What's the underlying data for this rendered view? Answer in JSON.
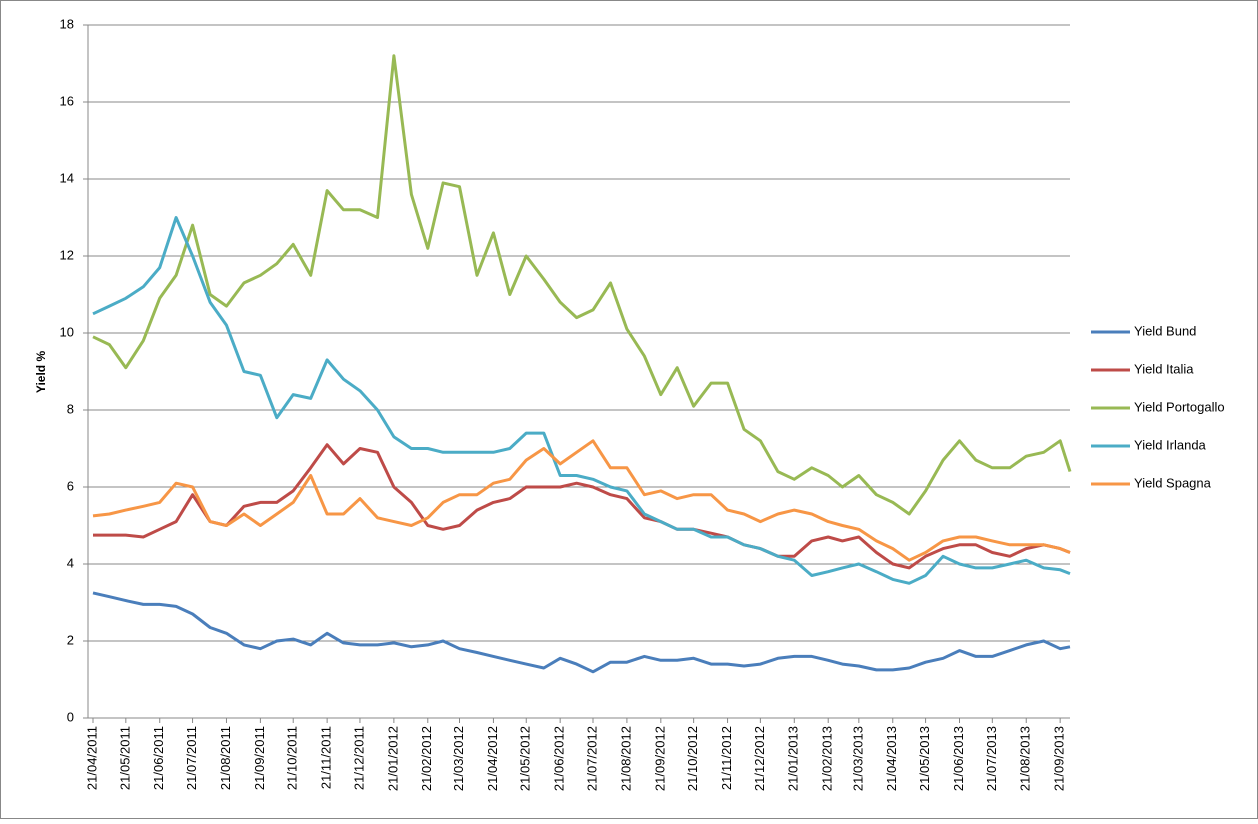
{
  "chart_data": {
    "type": "line",
    "y_label": "Yield %",
    "x": [
      "21/04/2011",
      "06/05/2011",
      "21/05/2011",
      "06/06/2011",
      "21/06/2011",
      "06/07/2011",
      "21/07/2011",
      "06/08/2011",
      "21/08/2011",
      "06/09/2011",
      "21/09/2011",
      "06/10/2011",
      "21/10/2011",
      "06/11/2011",
      "21/11/2011",
      "06/12/2011",
      "21/12/2011",
      "06/01/2012",
      "21/01/2012",
      "06/02/2012",
      "21/02/2012",
      "06/03/2012",
      "21/03/2012",
      "06/04/2012",
      "21/04/2012",
      "06/05/2012",
      "21/05/2012",
      "06/06/2012",
      "21/06/2012",
      "06/07/2012",
      "21/07/2012",
      "06/08/2012",
      "21/08/2012",
      "06/09/2012",
      "21/09/2012",
      "06/10/2012",
      "21/10/2012",
      "06/11/2012",
      "21/11/2012",
      "06/12/2012",
      "21/12/2012",
      "06/01/2013",
      "21/01/2013",
      "06/02/2013",
      "21/02/2013",
      "06/03/2013",
      "21/03/2013",
      "06/04/2013",
      "21/04/2013",
      "06/05/2013",
      "21/05/2013",
      "06/06/2013",
      "21/06/2013",
      "06/07/2013",
      "21/07/2013",
      "06/08/2013",
      "21/08/2013",
      "06/09/2013",
      "21/09/2013",
      "30/09/2013"
    ],
    "series": [
      {
        "name": "Yield Bund",
        "color": "#4a7ebb",
        "values": [
          3.25,
          3.15,
          3.05,
          2.95,
          2.95,
          2.9,
          2.7,
          2.35,
          2.2,
          1.9,
          1.8,
          2.0,
          2.05,
          1.9,
          2.2,
          1.95,
          1.9,
          1.9,
          1.95,
          1.85,
          1.9,
          2.0,
          1.8,
          1.7,
          1.6,
          1.5,
          1.4,
          1.3,
          1.55,
          1.4,
          1.2,
          1.45,
          1.45,
          1.6,
          1.5,
          1.5,
          1.55,
          1.4,
          1.4,
          1.35,
          1.4,
          1.55,
          1.6,
          1.6,
          1.5,
          1.4,
          1.35,
          1.25,
          1.25,
          1.3,
          1.45,
          1.55,
          1.75,
          1.6,
          1.6,
          1.75,
          1.9,
          2.0,
          1.8,
          1.85
        ]
      },
      {
        "name": "Yield Italia",
        "color": "#be4b48",
        "values": [
          4.75,
          4.75,
          4.75,
          4.7,
          4.9,
          5.1,
          5.8,
          5.1,
          5.0,
          5.5,
          5.6,
          5.6,
          5.9,
          6.5,
          7.1,
          6.6,
          7.0,
          6.9,
          6.0,
          5.6,
          5.0,
          4.9,
          5.0,
          5.4,
          5.6,
          5.7,
          6.0,
          6.0,
          6.0,
          6.1,
          6.0,
          5.8,
          5.7,
          5.2,
          5.1,
          4.9,
          4.9,
          4.8,
          4.7,
          4.5,
          4.4,
          4.2,
          4.2,
          4.6,
          4.7,
          4.6,
          4.7,
          4.3,
          4.0,
          3.9,
          4.2,
          4.4,
          4.5,
          4.5,
          4.3,
          4.2,
          4.4,
          4.5,
          4.4,
          4.3
        ]
      },
      {
        "name": "Yield Portogallo",
        "color": "#98b954",
        "values": [
          9.9,
          9.7,
          9.1,
          9.8,
          10.9,
          11.5,
          12.8,
          11.0,
          10.7,
          11.3,
          11.5,
          11.8,
          12.3,
          11.5,
          13.7,
          13.2,
          13.2,
          13.0,
          17.2,
          13.6,
          12.2,
          13.9,
          13.8,
          11.5,
          12.6,
          11.0,
          12.0,
          11.4,
          10.8,
          10.4,
          10.6,
          11.3,
          10.1,
          9.4,
          8.4,
          9.1,
          8.1,
          8.7,
          8.7,
          7.5,
          7.2,
          6.4,
          6.2,
          6.5,
          6.3,
          6.0,
          6.3,
          5.8,
          5.6,
          5.3,
          5.9,
          6.7,
          7.2,
          6.7,
          6.5,
          6.5,
          6.8,
          6.9,
          7.2,
          6.4
        ]
      },
      {
        "name": "Yield Irlanda",
        "color": "#4bacc6",
        "values": [
          10.5,
          10.7,
          10.9,
          11.2,
          11.7,
          13.0,
          12.0,
          10.8,
          10.2,
          9.0,
          8.9,
          7.8,
          8.4,
          8.3,
          9.3,
          8.8,
          8.5,
          8.0,
          7.3,
          7.0,
          7.0,
          6.9,
          6.9,
          6.9,
          6.9,
          7.0,
          7.4,
          7.4,
          6.3,
          6.3,
          6.2,
          6.0,
          5.9,
          5.3,
          5.1,
          4.9,
          4.9,
          4.7,
          4.7,
          4.5,
          4.4,
          4.2,
          4.1,
          3.7,
          3.8,
          3.9,
          4.0,
          3.8,
          3.6,
          3.5,
          3.7,
          4.2,
          4.0,
          3.9,
          3.9,
          4.0,
          4.1,
          3.9,
          3.85,
          3.75
        ]
      },
      {
        "name": "Yield Spagna",
        "color": "#f79646",
        "values": [
          5.25,
          5.3,
          5.4,
          5.5,
          5.6,
          6.1,
          6.0,
          5.1,
          5.0,
          5.3,
          5.0,
          5.3,
          5.6,
          6.3,
          5.3,
          5.3,
          5.7,
          5.2,
          5.1,
          5.0,
          5.2,
          5.6,
          5.8,
          5.8,
          6.1,
          6.2,
          6.7,
          7.0,
          6.6,
          6.9,
          7.2,
          6.5,
          6.5,
          5.8,
          5.9,
          5.7,
          5.8,
          5.8,
          5.4,
          5.3,
          5.1,
          5.3,
          5.4,
          5.3,
          5.1,
          5.0,
          4.9,
          4.6,
          4.4,
          4.1,
          4.3,
          4.6,
          4.7,
          4.7,
          4.6,
          4.5,
          4.5,
          4.5,
          4.4,
          4.3
        ]
      }
    ],
    "xlim": [
      "21/04/2011",
      "30/09/2013"
    ],
    "xticks": [
      "21/04/2011",
      "21/05/2011",
      "21/06/2011",
      "21/07/2011",
      "21/08/2011",
      "21/09/2011",
      "21/10/2011",
      "21/11/2011",
      "21/12/2011",
      "21/01/2012",
      "21/02/2012",
      "21/03/2012",
      "21/04/2012",
      "21/05/2012",
      "21/06/2012",
      "21/07/2012",
      "21/08/2012",
      "21/09/2012",
      "21/10/2012",
      "21/11/2012",
      "21/12/2012",
      "21/01/2013",
      "21/02/2013",
      "21/03/2013",
      "21/04/2013",
      "21/05/2013",
      "21/06/2013",
      "21/07/2013",
      "21/08/2013",
      "21/09/2013"
    ],
    "ylim": [
      0,
      18
    ],
    "yticks": [
      0,
      2,
      4,
      6,
      8,
      10,
      12,
      14,
      16,
      18
    ],
    "grid": true,
    "legend": "right"
  }
}
